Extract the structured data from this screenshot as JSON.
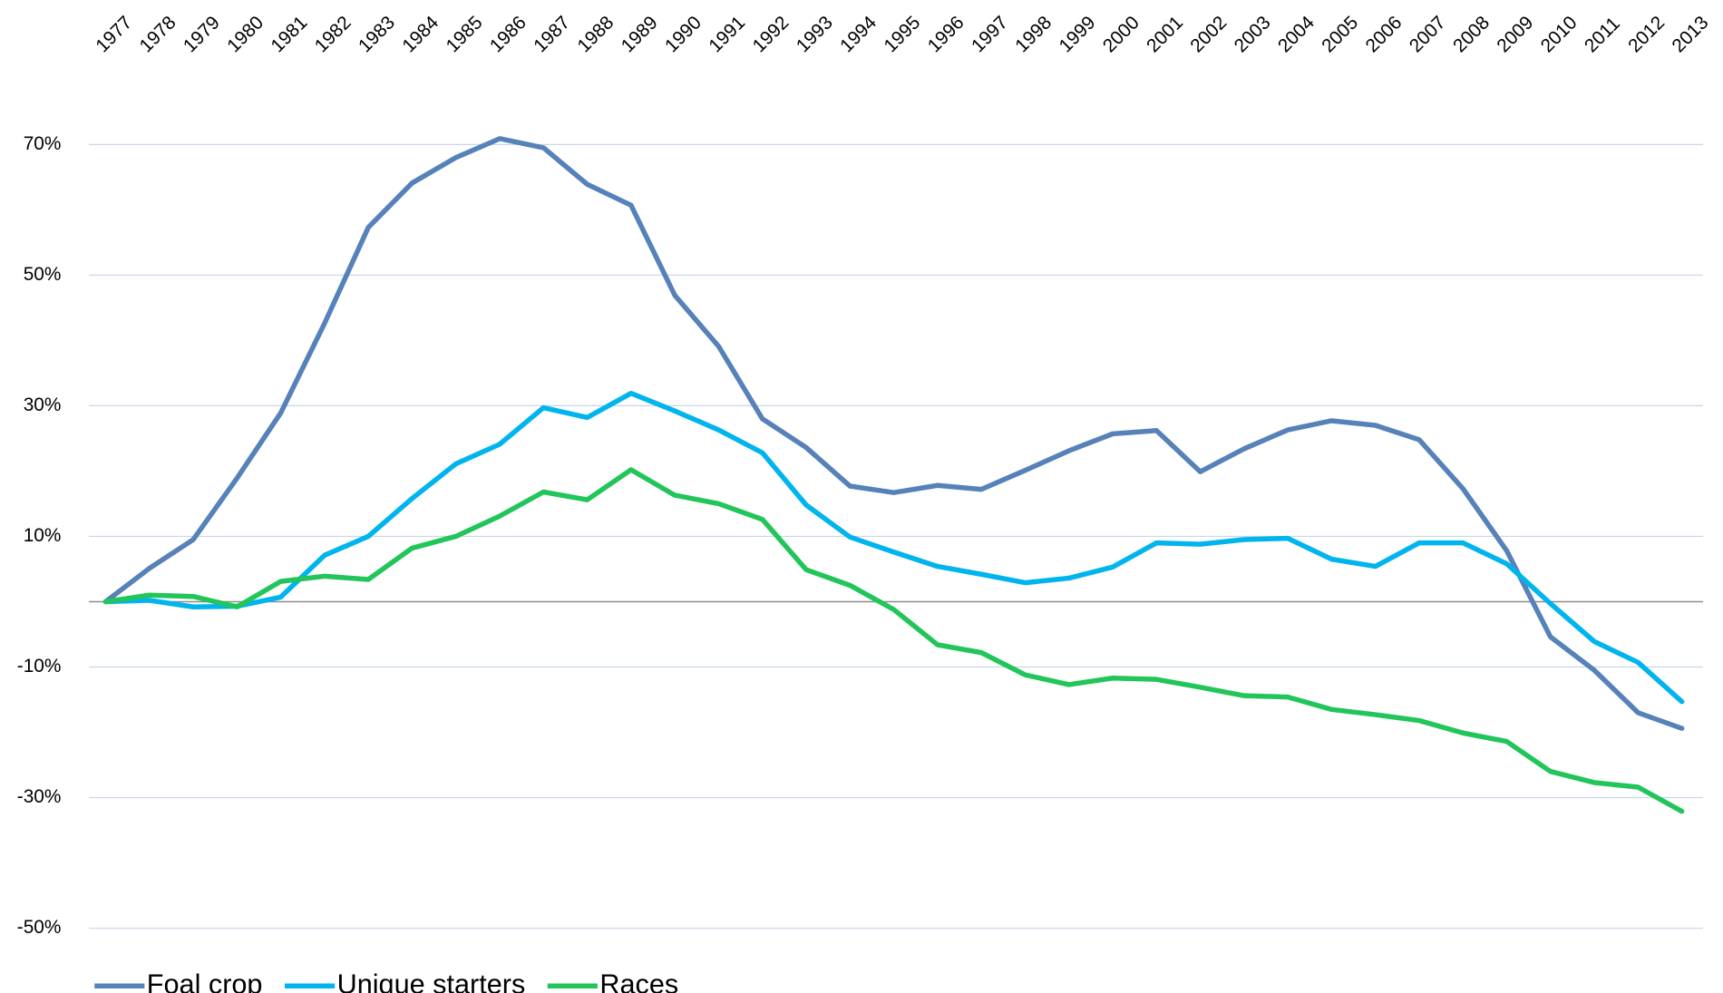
{
  "chart_data": {
    "type": "line",
    "categories": [
      "1977",
      "1978",
      "1979",
      "1980",
      "1981",
      "1982",
      "1983",
      "1984",
      "1985",
      "1986",
      "1987",
      "1988",
      "1989",
      "1990",
      "1991",
      "1992",
      "1993",
      "1994",
      "1995",
      "1996",
      "1997",
      "1998",
      "1999",
      "2000",
      "2001",
      "2002",
      "2003",
      "2004",
      "2005",
      "2006",
      "2007",
      "2008",
      "2009",
      "2010",
      "2011",
      "2012",
      "2013"
    ],
    "series": [
      {
        "name": "Foal crop",
        "color": "#5682b9",
        "values": [
          0,
          5.1,
          9.5,
          18.9,
          28.9,
          42.6,
          57.3,
          64.1,
          68,
          70.9,
          69.5,
          63.9,
          60.7,
          46.9,
          39.1,
          28,
          23.6,
          17.7,
          16.7,
          17.8,
          17.2,
          20.1,
          23.1,
          25.7,
          26.2,
          19.9,
          23.4,
          26.3,
          27.7,
          27,
          24.8,
          17.3,
          7.8,
          -5.4,
          -10.5,
          -17,
          -19.4
        ]
      },
      {
        "name": "Unique starters",
        "color": "#00b4ee",
        "values": [
          0,
          0.2,
          -0.8,
          -0.7,
          0.7,
          7.1,
          10,
          15.8,
          21.1,
          24.1,
          29.7,
          28.2,
          31.9,
          29.2,
          26.3,
          22.8,
          14.8,
          9.9,
          7.6,
          5.4,
          4.2,
          2.9,
          3.6,
          5.3,
          9,
          8.8,
          9.5,
          9.7,
          6.5,
          5.4,
          9,
          9,
          5.8,
          -0.3,
          -6.1,
          -9.3,
          -15.3
        ]
      },
      {
        "name": "Races",
        "color": "#22c55a",
        "values": [
          0,
          1,
          0.8,
          -0.8,
          3.1,
          3.9,
          3.4,
          8.2,
          10,
          13.1,
          16.8,
          15.6,
          20.2,
          16.3,
          15,
          12.6,
          4.9,
          2.5,
          -1.2,
          -6.6,
          -7.8,
          -11.2,
          -12.7,
          -11.7,
          -11.9,
          -13.1,
          -14.4,
          -14.6,
          -16.5,
          -17.3,
          -18.2,
          -20.1,
          -21.4,
          -26,
          -27.7,
          -28.4,
          -32.1
        ]
      }
    ],
    "ylim": [
      -55,
      75
    ],
    "yticks": [
      {
        "value": 70,
        "label": "70%"
      },
      {
        "value": 50,
        "label": "50%"
      },
      {
        "value": 30,
        "label": "30%"
      },
      {
        "value": 10,
        "label": "10%"
      },
      {
        "value": -10,
        "label": "-10%"
      },
      {
        "value": -30,
        "label": "-30%"
      },
      {
        "value": -50,
        "label": "-50%"
      }
    ],
    "grid": true,
    "legend": "bottom-left"
  }
}
